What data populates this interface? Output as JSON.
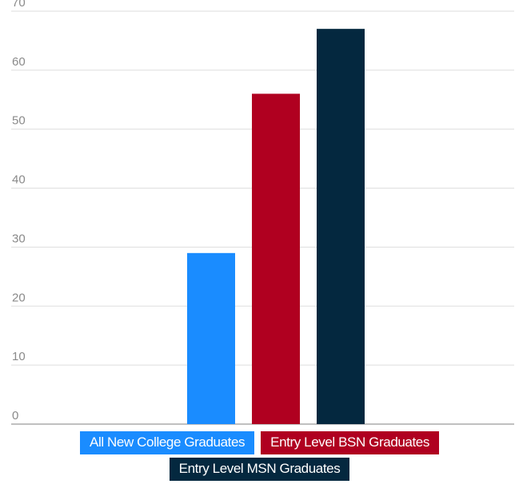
{
  "chart_data": {
    "type": "bar",
    "title": "",
    "xlabel": "",
    "ylabel": "",
    "ylim": [
      0,
      70
    ],
    "yticks": [
      0,
      10,
      20,
      30,
      40,
      50,
      60,
      70
    ],
    "grid": true,
    "legend_position": "bottom",
    "series": [
      {
        "name": "All New College Graduates",
        "value": 29,
        "color": "#1a8cff"
      },
      {
        "name": "Entry Level BSN Graduates",
        "value": 56,
        "color": "#b00020"
      },
      {
        "name": "Entry Level MSN Graduates",
        "value": 67,
        "color": "#04283f"
      }
    ]
  }
}
